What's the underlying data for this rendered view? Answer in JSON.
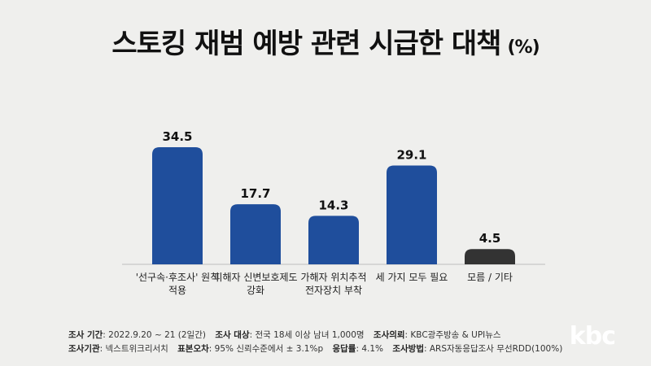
{
  "header": {
    "title": "스토킹 재범 예방 관련 시급한 대책",
    "unit": "(%)"
  },
  "chart_data": {
    "type": "bar",
    "title": "스토킹 재범 예방 관련 시급한 대책",
    "unit": "(%)",
    "categories": [
      [
        "'선구속·후조사' 원칙",
        "적용"
      ],
      [
        "피해자 신변보호제도",
        "강화"
      ],
      [
        "가해자 위치추적",
        "전자장치 부착"
      ],
      [
        "세 가지 모두 필요"
      ],
      [
        "모름 / 기타"
      ]
    ],
    "values": [
      34.5,
      17.7,
      14.3,
      29.1,
      4.5
    ],
    "value_labels": [
      "34.5",
      "17.7",
      "14.3",
      "29.1",
      "4.5"
    ],
    "colors": [
      "#1f4e9c",
      "#1f4e9c",
      "#1f4e9c",
      "#1f4e9c",
      "#333333"
    ],
    "ylim": [
      0,
      34.5
    ],
    "grid": false,
    "legend": "none"
  },
  "footer": {
    "row1": [
      {
        "label": "조사 기간",
        "value": ": 2022.9.20 ~ 21 (2일간)"
      },
      {
        "label": "조사 대상",
        "value": ": 전국 18세 이상 남녀 1,000명"
      },
      {
        "label": "조사의뢰",
        "value": ": KBC광주방송 & UPI뉴스"
      }
    ],
    "row2": [
      {
        "label": "조사기관",
        "value": ": 넥스트위크리서치"
      },
      {
        "label": "표본오차",
        "value": ": 95% 신뢰수준에서 ± 3.1%p"
      },
      {
        "label": "응답률",
        "value": ": 4.1%"
      },
      {
        "label": "조사방법",
        "value": ": ARS자동응답조사 무선RDD(100%)"
      }
    ]
  },
  "logo": {
    "text": "kbc"
  }
}
